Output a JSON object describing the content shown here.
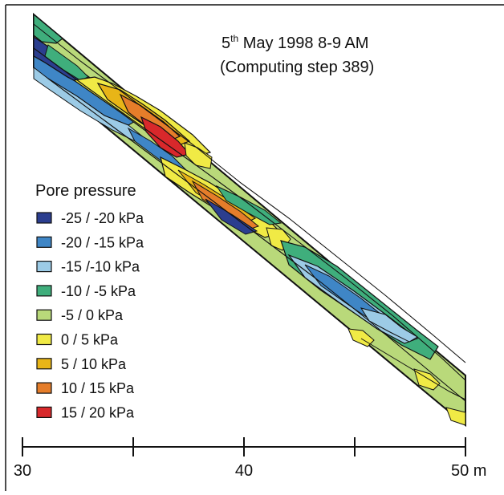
{
  "title": {
    "line1_main": "5",
    "line1_sup": "th",
    "line1_rest": " May 1998 8-9 AM",
    "line2": "(Computing step 389)"
  },
  "legend": {
    "title": "Pore pressure",
    "items": [
      {
        "label": "-25 / -20 kPa",
        "color": "#2b3e8f"
      },
      {
        "label": "-20 / -15 kPa",
        "color": "#3f86c6"
      },
      {
        "label": "-15 /-10 kPa",
        "color": "#9ccbe6"
      },
      {
        "label": "-10 / -5 kPa",
        "color": "#3fae7c"
      },
      {
        "label": "-5 / 0 kPa",
        "color": "#b9d97a"
      },
      {
        "label": "0 / 5 kPa",
        "color": "#f0ea45"
      },
      {
        "label": "5 / 10 kPa",
        "color": "#e8b517"
      },
      {
        "label": "10 / 15 kPa",
        "color": "#e57d2a"
      },
      {
        "label": "15 / 20 kPa",
        "color": "#d8282b"
      }
    ]
  },
  "axis": {
    "ticks": [
      "30",
      "40",
      "50 m"
    ]
  }
}
